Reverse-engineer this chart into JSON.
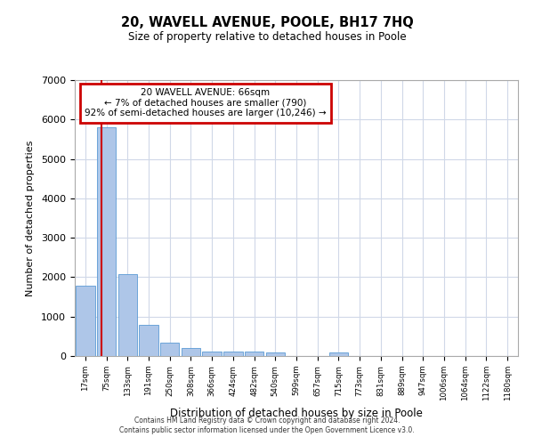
{
  "title": "20, WAVELL AVENUE, POOLE, BH17 7HQ",
  "subtitle": "Size of property relative to detached houses in Poole",
  "xlabel": "Distribution of detached houses by size in Poole",
  "ylabel": "Number of detached properties",
  "bar_labels": [
    "17sqm",
    "75sqm",
    "133sqm",
    "191sqm",
    "250sqm",
    "308sqm",
    "366sqm",
    "424sqm",
    "482sqm",
    "540sqm",
    "599sqm",
    "657sqm",
    "715sqm",
    "773sqm",
    "831sqm",
    "889sqm",
    "947sqm",
    "1006sqm",
    "1064sqm",
    "1122sqm",
    "1180sqm"
  ],
  "bar_values": [
    1780,
    5800,
    2080,
    800,
    340,
    195,
    120,
    115,
    115,
    90,
    0,
    0,
    90,
    0,
    0,
    0,
    0,
    0,
    0,
    0,
    0
  ],
  "bar_color": "#aec6e8",
  "bar_edge_color": "#5b9bd5",
  "background_color": "#ffffff",
  "grid_color": "#d0d8e8",
  "annotation_text": "20 WAVELL AVENUE: 66sqm\n← 7% of detached houses are smaller (790)\n92% of semi-detached houses are larger (10,246) →",
  "annotation_box_color": "#ffffff",
  "annotation_box_edge": "#cc0000",
  "red_line_color": "#cc0000",
  "ylim": [
    0,
    7000
  ],
  "yticks": [
    0,
    1000,
    2000,
    3000,
    4000,
    5000,
    6000,
    7000
  ],
  "footer_line1": "Contains HM Land Registry data © Crown copyright and database right 2024.",
  "footer_line2": "Contains public sector information licensed under the Open Government Licence v3.0."
}
